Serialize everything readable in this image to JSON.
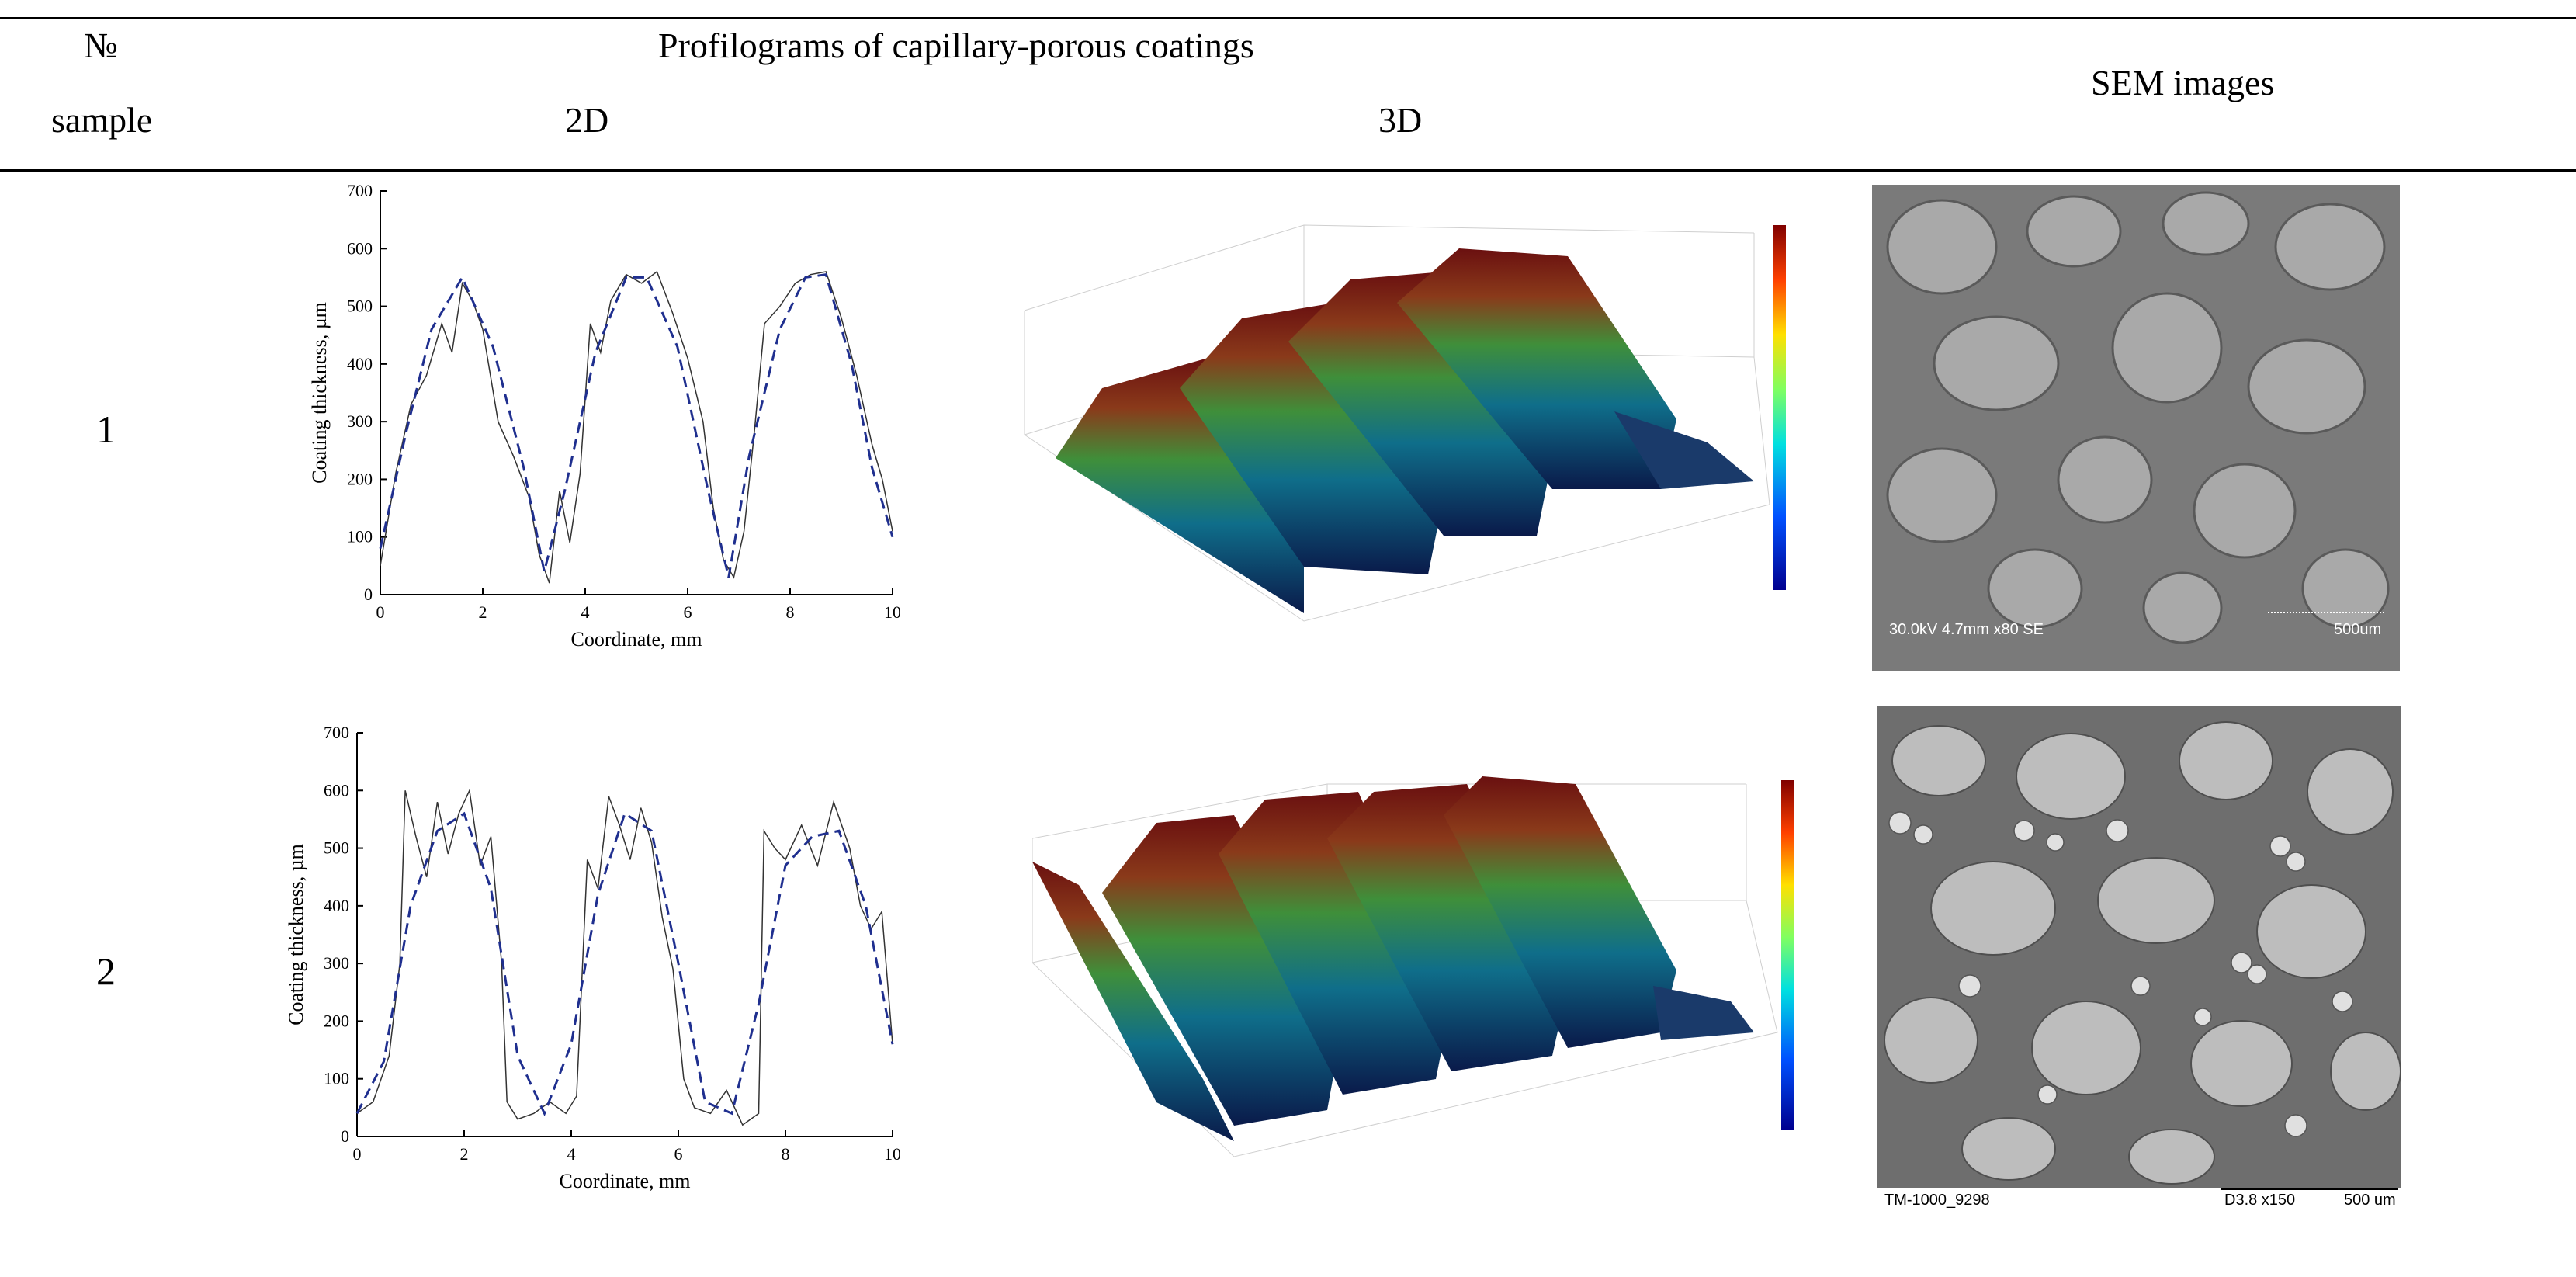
{
  "table": {
    "header": {
      "num_symbol": "№",
      "sample": "sample",
      "profilograms": "Profilograms of capillary-porous coatings",
      "col_2d": "2D",
      "col_3d": "3D",
      "sem": "SEM images"
    },
    "rows": [
      {
        "number": "1",
        "sem_caption_left": "30.0kV 4.7mm x80 SE",
        "sem_caption_right": "500um"
      },
      {
        "number": "2",
        "sem_caption_left": "TM-1000_9298",
        "sem_caption_mid": "D3.8   x150",
        "sem_caption_right": "500 um"
      }
    ]
  },
  "chart_data": [
    {
      "type": "line",
      "xlabel": "Coordinate, mm",
      "ylabel": "Coating thickness, µm",
      "xlim": [
        0,
        10
      ],
      "ylim": [
        0,
        700
      ],
      "xticks": [
        "0",
        "2",
        "4",
        "6",
        "8",
        "10"
      ],
      "yticks": [
        "0",
        "100",
        "200",
        "300",
        "400",
        "500",
        "600",
        "700"
      ],
      "series": [
        {
          "style": "measured",
          "color": "#333333",
          "x": [
            0,
            0.3,
            0.6,
            0.9,
            1.2,
            1.4,
            1.6,
            1.8,
            2.0,
            2.3,
            2.6,
            2.9,
            3.1,
            3.3,
            3.5,
            3.7,
            3.9,
            4.1,
            4.3,
            4.5,
            4.8,
            5.1,
            5.4,
            5.7,
            6.0,
            6.3,
            6.5,
            6.7,
            6.9,
            7.1,
            7.3,
            7.5,
            7.8,
            8.1,
            8.4,
            8.7,
            9.0,
            9.3,
            9.6,
            9.8,
            10
          ],
          "y": [
            50,
            210,
            330,
            380,
            470,
            420,
            540,
            510,
            460,
            300,
            240,
            170,
            70,
            20,
            180,
            90,
            210,
            470,
            420,
            510,
            555,
            540,
            560,
            490,
            410,
            300,
            150,
            60,
            30,
            110,
            280,
            470,
            500,
            540,
            555,
            560,
            480,
            380,
            260,
            200,
            110
          ]
        },
        {
          "style": "fit",
          "color": "#1f2f8f",
          "x": [
            0,
            0.5,
            1.0,
            1.6,
            2.2,
            2.8,
            3.2,
            3.6,
            4.2,
            4.8,
            5.2,
            5.8,
            6.4,
            6.8,
            7.2,
            7.8,
            8.3,
            8.7,
            9.2,
            9.6,
            10
          ],
          "y": [
            80,
            280,
            460,
            550,
            430,
            220,
            40,
            180,
            420,
            550,
            550,
            430,
            180,
            30,
            240,
            460,
            550,
            555,
            400,
            220,
            100
          ]
        }
      ]
    },
    {
      "type": "line",
      "xlabel": "Coordinate, mm",
      "ylabel": "Coating thickness, µm",
      "xlim": [
        0,
        10
      ],
      "ylim": [
        0,
        700
      ],
      "xticks": [
        "0",
        "2",
        "4",
        "6",
        "8",
        "10"
      ],
      "yticks": [
        "0",
        "100",
        "200",
        "300",
        "400",
        "500",
        "600",
        "700"
      ],
      "series": [
        {
          "style": "measured",
          "color": "#333333",
          "x": [
            0,
            0.3,
            0.6,
            0.8,
            0.9,
            1.1,
            1.3,
            1.5,
            1.7,
            1.9,
            2.1,
            2.3,
            2.5,
            2.7,
            2.8,
            3.0,
            3.3,
            3.6,
            3.9,
            4.1,
            4.3,
            4.5,
            4.7,
            4.9,
            5.1,
            5.3,
            5.5,
            5.7,
            5.9,
            6.1,
            6.3,
            6.6,
            6.9,
            7.2,
            7.5,
            7.6,
            7.8,
            8.0,
            8.3,
            8.6,
            8.9,
            9.2,
            9.4,
            9.6,
            9.8,
            10
          ],
          "y": [
            40,
            60,
            140,
            300,
            600,
            520,
            450,
            580,
            490,
            560,
            600,
            470,
            520,
            300,
            60,
            30,
            40,
            60,
            40,
            70,
            480,
            430,
            590,
            540,
            480,
            570,
            510,
            380,
            290,
            100,
            50,
            40,
            80,
            20,
            40,
            530,
            500,
            480,
            540,
            470,
            580,
            500,
            400,
            360,
            390,
            160
          ]
        },
        {
          "style": "fit",
          "color": "#1f2f8f",
          "x": [
            0,
            0.5,
            1.0,
            1.5,
            2.0,
            2.5,
            3.0,
            3.5,
            4.0,
            4.5,
            5.0,
            5.5,
            6.0,
            6.5,
            7.0,
            7.5,
            8.0,
            8.5,
            9.0,
            9.5,
            10
          ],
          "y": [
            40,
            130,
            400,
            530,
            560,
            430,
            140,
            40,
            160,
            420,
            560,
            530,
            300,
            60,
            40,
            230,
            470,
            520,
            530,
            400,
            160
          ]
        }
      ]
    }
  ]
}
